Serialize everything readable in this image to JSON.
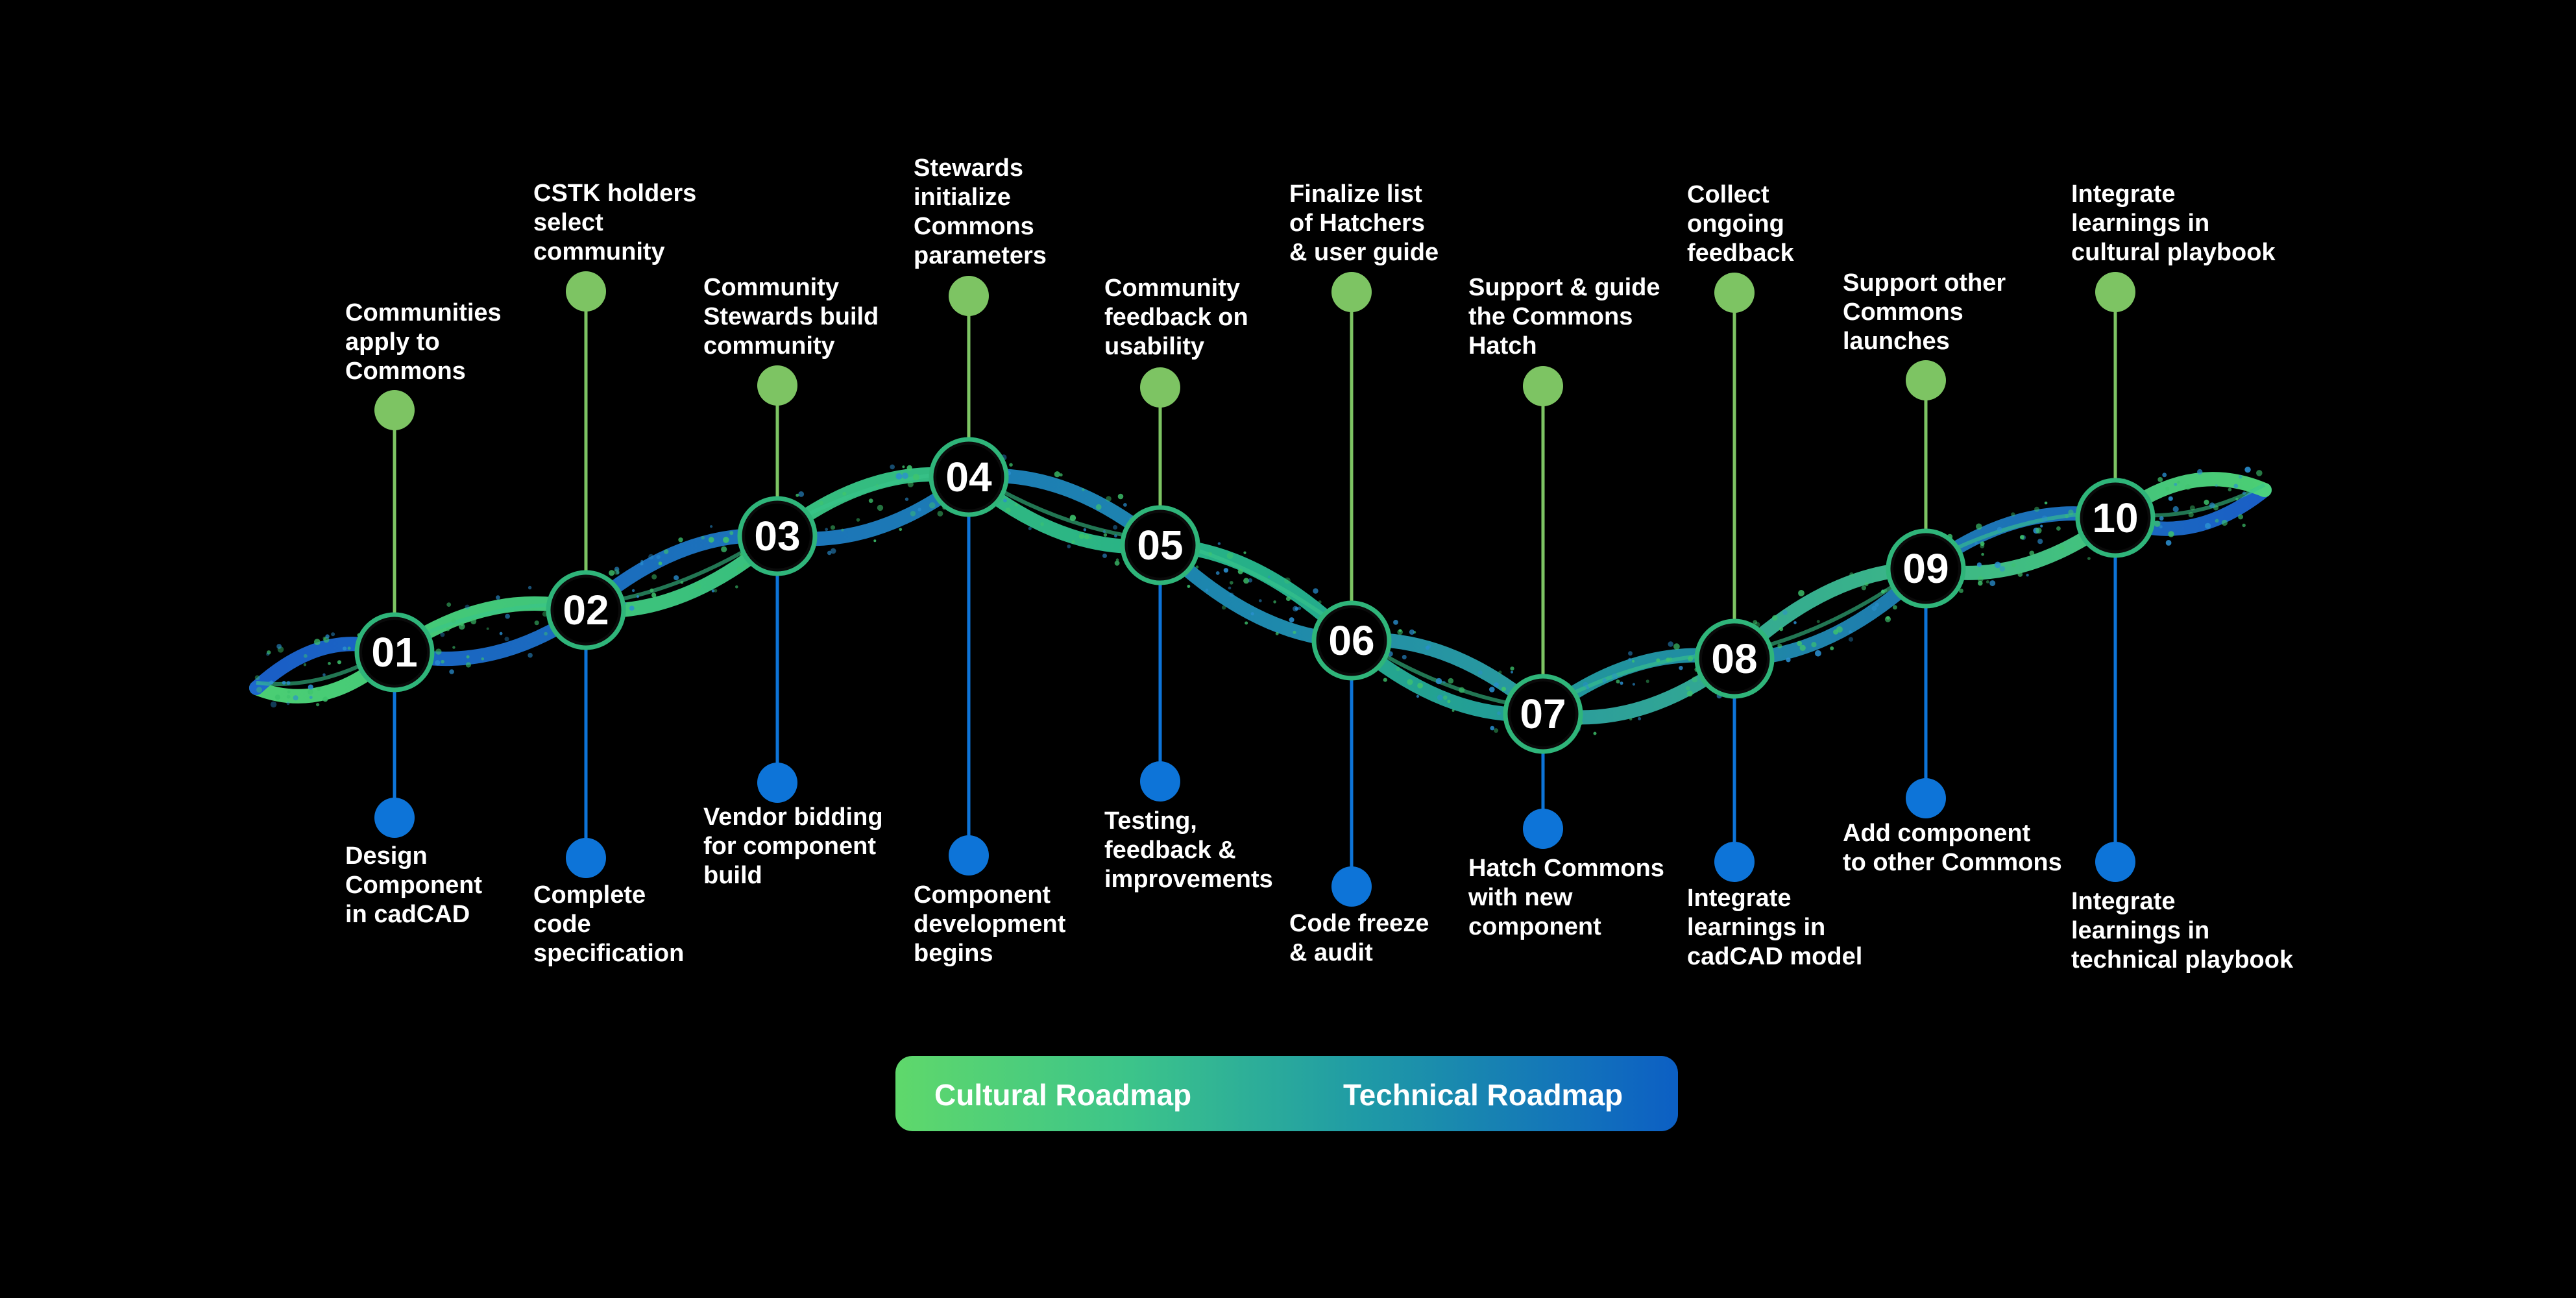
{
  "colors": {
    "background": "#000000",
    "cultural": "#7dc463",
    "technical": "#0d74d8",
    "text": "#ffffff"
  },
  "legend": {
    "cultural_label": "Cultural Roadmap",
    "technical_label": "Technical Roadmap"
  },
  "milestones": [
    {
      "number": "01",
      "cultural": [
        "Communities",
        "apply to",
        "Commons"
      ],
      "technical": [
        "Design",
        "Component",
        "in cadCAD"
      ]
    },
    {
      "number": "02",
      "cultural": [
        "CSTK holders",
        "select",
        "community"
      ],
      "technical": [
        "Complete",
        "code",
        "specification"
      ]
    },
    {
      "number": "03",
      "cultural": [
        "Community",
        "Stewards build",
        "community"
      ],
      "technical": [
        "Vendor bidding",
        "for component",
        "build"
      ]
    },
    {
      "number": "04",
      "cultural": [
        "Stewards",
        "initialize",
        "Commons",
        "parameters"
      ],
      "technical": [
        "Component",
        "development",
        "begins"
      ]
    },
    {
      "number": "05",
      "cultural": [
        "Community",
        "feedback on",
        "usability"
      ],
      "technical": [
        "Testing,",
        "feedback &",
        "improvements"
      ]
    },
    {
      "number": "06",
      "cultural": [
        "Finalize list",
        "of Hatchers",
        "& user guide"
      ],
      "technical": [
        "Code freeze",
        "& audit"
      ]
    },
    {
      "number": "07",
      "cultural": [
        "Support & guide",
        "the Commons",
        "Hatch"
      ],
      "technical": [
        "Hatch Commons",
        "with new",
        "component"
      ]
    },
    {
      "number": "08",
      "cultural": [
        "Collect",
        "ongoing",
        "feedback"
      ],
      "technical": [
        "Integrate",
        "learnings in",
        "cadCAD model"
      ]
    },
    {
      "number": "09",
      "cultural": [
        "Support other",
        "Commons",
        "launches"
      ],
      "technical": [
        "Add component",
        "to other Commons"
      ]
    },
    {
      "number": "10",
      "cultural": [
        "Integrate",
        "learnings in",
        "cultural playbook"
      ],
      "technical": [
        "Integrate",
        "learnings in",
        "technical playbook"
      ]
    }
  ]
}
